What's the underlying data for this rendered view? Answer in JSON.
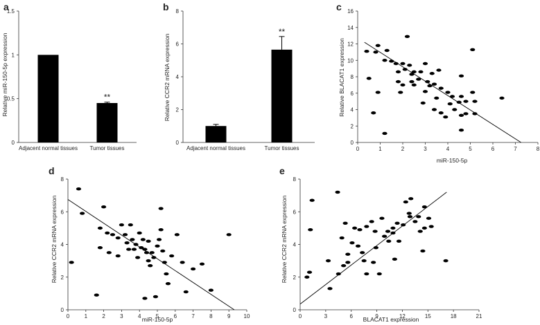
{
  "chart_data": [
    {
      "id": "a",
      "type": "bar",
      "panel_label": "a",
      "categories": [
        "Adjacent normal tissues",
        "Tumor tissues"
      ],
      "values": [
        1.0,
        0.45
      ],
      "errors": [
        0.0,
        0.01
      ],
      "significance": [
        "",
        "**"
      ],
      "ylabel": "Relative  miR-150-5p  expression",
      "ylim": [
        0,
        1.5
      ],
      "yticks": [
        "0",
        "0.5",
        "1",
        "1.5"
      ],
      "grid": false
    },
    {
      "id": "b",
      "type": "bar",
      "panel_label": "b",
      "categories": [
        "Adjacent normal tissues",
        "Tumor tissues"
      ],
      "values": [
        1.0,
        5.65
      ],
      "errors": [
        0.1,
        0.8
      ],
      "significance": [
        "",
        "**"
      ],
      "ylabel": "Relative  CCR2  mRNA expression",
      "ylim": [
        0,
        8
      ],
      "yticks": [
        "0",
        "2",
        "4",
        "6",
        "8"
      ],
      "grid": false
    },
    {
      "id": "c",
      "type": "scatter",
      "panel_label": "c",
      "xlabel": "miR-150-5p",
      "ylabel": "Relative  BLACAT1 expression",
      "xlim": [
        0,
        8
      ],
      "ylim": [
        0,
        16
      ],
      "xticks": [
        "0",
        "1",
        "2",
        "3",
        "4",
        "5",
        "6",
        "7",
        "8"
      ],
      "yticks": [
        "0",
        "2",
        "4",
        "6",
        "8",
        "10",
        "12",
        "14",
        "16"
      ],
      "points": [
        [
          0.4,
          11.1
        ],
        [
          0.8,
          11.0
        ],
        [
          0.9,
          11.8
        ],
        [
          1.3,
          11.2
        ],
        [
          1.2,
          10.0
        ],
        [
          1.5,
          9.9
        ],
        [
          1.7,
          9.6
        ],
        [
          2.2,
          12.9
        ],
        [
          2.0,
          9.6
        ],
        [
          2.3,
          9.4
        ],
        [
          2.1,
          8.9
        ],
        [
          1.8,
          8.6
        ],
        [
          2.5,
          8.6
        ],
        [
          2.8,
          8.6
        ],
        [
          3.0,
          9.6
        ],
        [
          3.3,
          8.4
        ],
        [
          3.6,
          8.8
        ],
        [
          2.4,
          8.3
        ],
        [
          2.7,
          7.7
        ],
        [
          3.1,
          7.4
        ],
        [
          3.4,
          7.1
        ],
        [
          3.7,
          6.6
        ],
        [
          4.0,
          6.1
        ],
        [
          4.2,
          5.6
        ],
        [
          4.6,
          5.6
        ],
        [
          4.5,
          4.9
        ],
        [
          4.8,
          5.0
        ],
        [
          5.2,
          5.0
        ],
        [
          5.1,
          6.1
        ],
        [
          4.6,
          8.1
        ],
        [
          5.1,
          11.3
        ],
        [
          6.4,
          5.4
        ],
        [
          0.5,
          7.8
        ],
        [
          0.7,
          3.6
        ],
        [
          0.9,
          6.1
        ],
        [
          1.2,
          1.1
        ],
        [
          1.8,
          7.4
        ],
        [
          2.0,
          7.0
        ],
        [
          1.9,
          6.1
        ],
        [
          2.5,
          7.0
        ],
        [
          2.9,
          4.8
        ],
        [
          3.2,
          6.9
        ],
        [
          3.4,
          4.0
        ],
        [
          3.5,
          5.4
        ],
        [
          3.7,
          3.6
        ],
        [
          3.9,
          3.1
        ],
        [
          4.1,
          4.7
        ],
        [
          4.3,
          4.0
        ],
        [
          4.6,
          3.3
        ],
        [
          4.6,
          1.5
        ],
        [
          4.8,
          3.5
        ],
        [
          5.2,
          3.5
        ],
        [
          3.0,
          6.2
        ],
        [
          2.4,
          7.4
        ]
      ],
      "fit_line": [
        [
          0.3,
          12.2
        ],
        [
          7.25,
          0.0
        ]
      ],
      "grid": false
    },
    {
      "id": "d",
      "type": "scatter",
      "panel_label": "d",
      "xlabel": "miR-150-5p",
      "ylabel": "Relative  CCR2  mRNA expression",
      "xlim": [
        0,
        10
      ],
      "ylim": [
        0,
        8
      ],
      "xticks": [
        "0",
        "1",
        "2",
        "3",
        "4",
        "5",
        "6",
        "7",
        "8",
        "9",
        "10"
      ],
      "yticks": [
        "0",
        "2",
        "4",
        "6",
        "8"
      ],
      "points": [
        [
          0.2,
          2.9
        ],
        [
          0.6,
          7.4
        ],
        [
          0.8,
          5.9
        ],
        [
          1.6,
          0.9
        ],
        [
          1.8,
          5.0
        ],
        [
          2.0,
          6.3
        ],
        [
          1.8,
          3.8
        ],
        [
          2.2,
          4.7
        ],
        [
          2.3,
          3.5
        ],
        [
          2.5,
          4.6
        ],
        [
          2.8,
          4.4
        ],
        [
          3.0,
          5.2
        ],
        [
          3.2,
          4.6
        ],
        [
          3.3,
          4.1
        ],
        [
          3.5,
          5.2
        ],
        [
          3.6,
          4.3
        ],
        [
          3.7,
          3.7
        ],
        [
          3.9,
          3.2
        ],
        [
          4.0,
          4.7
        ],
        [
          4.2,
          4.3
        ],
        [
          4.3,
          3.7
        ],
        [
          4.4,
          3.5
        ],
        [
          4.5,
          3.0
        ],
        [
          4.6,
          2.7
        ],
        [
          4.7,
          3.5
        ],
        [
          4.8,
          3.2
        ],
        [
          5.0,
          3.9
        ],
        [
          5.1,
          4.3
        ],
        [
          5.2,
          4.9
        ],
        [
          5.3,
          3.6
        ],
        [
          5.4,
          2.9
        ],
        [
          5.5,
          2.2
        ],
        [
          5.2,
          6.2
        ],
        [
          5.8,
          3.3
        ],
        [
          6.1,
          4.6
        ],
        [
          6.4,
          2.9
        ],
        [
          6.6,
          1.1
        ],
        [
          7.0,
          2.5
        ],
        [
          7.5,
          2.8
        ],
        [
          8.0,
          1.2
        ],
        [
          9.0,
          4.6
        ],
        [
          4.3,
          0.7
        ],
        [
          4.9,
          0.8
        ],
        [
          5.6,
          1.6
        ],
        [
          2.8,
          3.3
        ],
        [
          3.4,
          3.7
        ],
        [
          4.1,
          3.8
        ],
        [
          4.5,
          4.2
        ],
        [
          3.8,
          4.0
        ]
      ],
      "fit_line": [
        [
          0.0,
          6.75
        ],
        [
          9.3,
          0.0
        ]
      ],
      "grid": false
    },
    {
      "id": "e",
      "type": "scatter",
      "panel_label": "e",
      "xlabel": "BLACAT1 expression",
      "ylabel": "Relative  CCR2  mRNA expression",
      "xlim": [
        0,
        21
      ],
      "ylim": [
        0,
        8
      ],
      "xticks": [
        "0",
        "3",
        "6",
        "9",
        "12",
        "15",
        "18",
        "21"
      ],
      "yticks": [
        "0",
        "2",
        "4",
        "6",
        "8"
      ],
      "points": [
        [
          0.8,
          2.0
        ],
        [
          1.1,
          2.3
        ],
        [
          1.2,
          4.9
        ],
        [
          1.4,
          6.7
        ],
        [
          3.5,
          1.3
        ],
        [
          3.3,
          3.0
        ],
        [
          4.4,
          7.2
        ],
        [
          4.5,
          2.2
        ],
        [
          4.9,
          4.4
        ],
        [
          5.1,
          2.7
        ],
        [
          5.3,
          5.3
        ],
        [
          5.6,
          3.4
        ],
        [
          5.6,
          2.9
        ],
        [
          6.1,
          4.1
        ],
        [
          6.4,
          5.0
        ],
        [
          7.0,
          4.9
        ],
        [
          7.3,
          3.5
        ],
        [
          7.5,
          3.0
        ],
        [
          7.8,
          5.1
        ],
        [
          7.8,
          2.2
        ],
        [
          8.4,
          5.4
        ],
        [
          8.6,
          2.9
        ],
        [
          8.8,
          4.8
        ],
        [
          9.3,
          2.2
        ],
        [
          9.6,
          5.6
        ],
        [
          9.9,
          4.5
        ],
        [
          10.3,
          4.8
        ],
        [
          10.4,
          4.2
        ],
        [
          10.9,
          5.0
        ],
        [
          10.9,
          4.7
        ],
        [
          11.1,
          3.1
        ],
        [
          11.4,
          5.3
        ],
        [
          11.6,
          4.2
        ],
        [
          12.1,
          5.2
        ],
        [
          12.4,
          6.6
        ],
        [
          12.9,
          5.7
        ],
        [
          13.0,
          6.8
        ],
        [
          13.5,
          5.4
        ],
        [
          13.9,
          5.7
        ],
        [
          14.1,
          4.8
        ],
        [
          14.6,
          5.0
        ],
        [
          14.6,
          6.3
        ],
        [
          15.1,
          5.6
        ],
        [
          15.4,
          5.1
        ],
        [
          17.1,
          3.0
        ],
        [
          14.4,
          3.6
        ],
        [
          8.9,
          3.8
        ],
        [
          6.8,
          3.9
        ],
        [
          12.8,
          5.9
        ]
      ],
      "fit_line": [
        [
          0.0,
          0.35
        ],
        [
          17.2,
          7.2
        ]
      ],
      "grid": false
    }
  ]
}
